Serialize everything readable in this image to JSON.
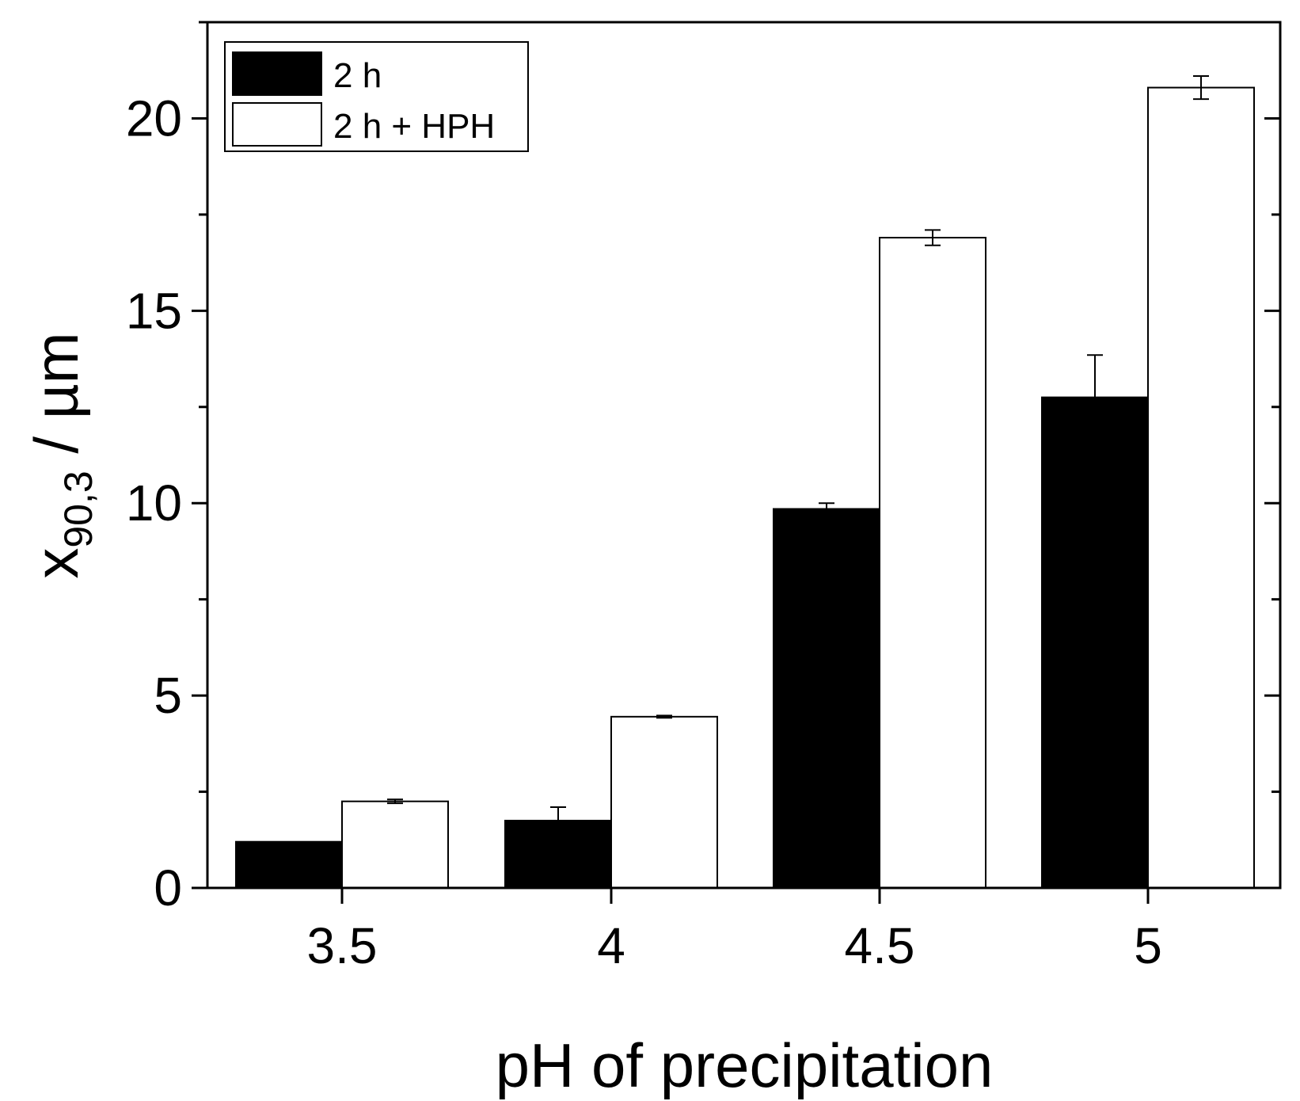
{
  "chart_data": {
    "type": "bar",
    "title": "",
    "xlabel": "pH of precipitation",
    "ylabel_main": "x",
    "ylabel_subscript": "90,3",
    "ylabel_unit": " / µm",
    "categories": [
      "3.5",
      "4",
      "4.5",
      "5"
    ],
    "series": [
      {
        "name": "2 h",
        "values": [
          1.2,
          1.75,
          9.85,
          12.75
        ],
        "errors": [
          0,
          0.35,
          0.15,
          1.1
        ],
        "fill": "#000000"
      },
      {
        "name": "2 h + HPH",
        "values": [
          2.25,
          4.45,
          16.9,
          20.8
        ],
        "errors": [
          0.05,
          0.03,
          0.2,
          0.3
        ],
        "fill": "#ffffff"
      }
    ],
    "ylim": [
      0,
      22.5
    ],
    "yticks": [
      "0",
      "5",
      "10",
      "15",
      "20"
    ],
    "ytick_values": [
      0,
      5,
      10,
      15,
      20
    ],
    "minor_step": 2.5,
    "legend_position": "top-left",
    "grid": false
  }
}
